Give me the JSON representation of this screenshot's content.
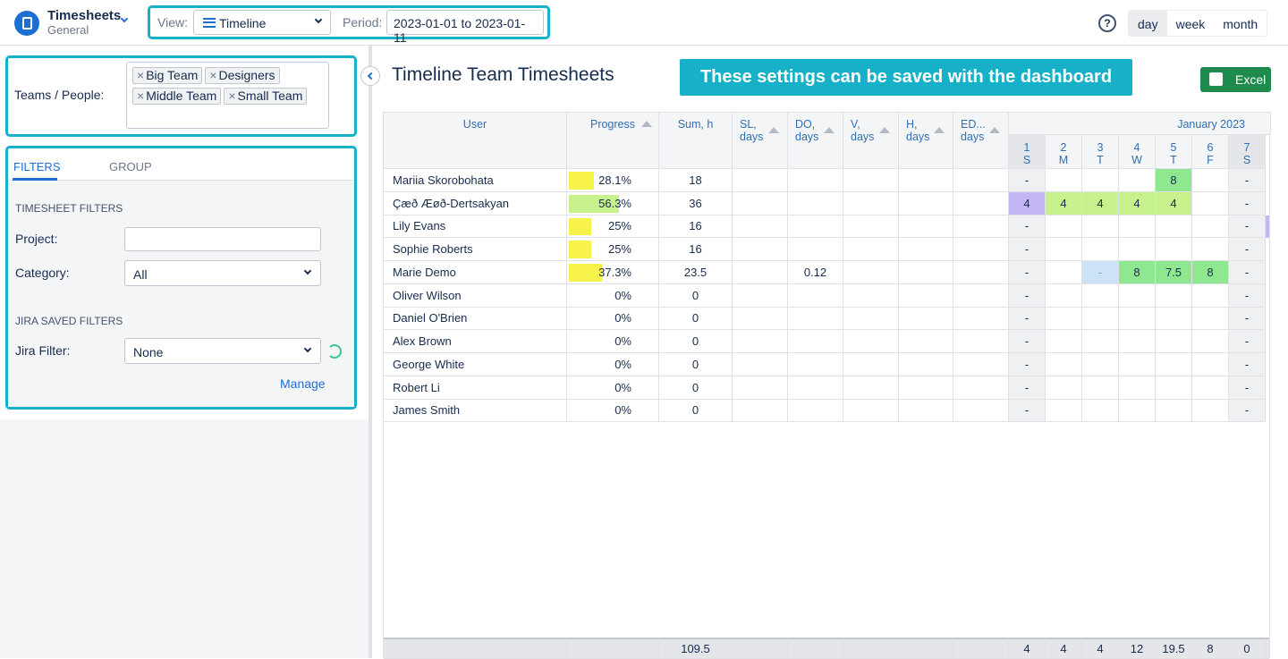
{
  "header": {
    "app_title": "Timesheets",
    "app_subtitle": "General",
    "view_label": "View:",
    "view_value": "Timeline",
    "period_label": "Period:",
    "period_value": "2023-01-01 to 2023-01-11",
    "help": "?",
    "modes": [
      "day",
      "week",
      "month"
    ]
  },
  "sidebar": {
    "teams_label": "Teams / People:",
    "teams": [
      "Big Team",
      "Designers",
      "Middle Team",
      "Small Team"
    ],
    "tabs": [
      "FILTERS",
      "GROUP"
    ],
    "timesheet_filters": "TIMESHEET FILTERS",
    "project_label": "Project:",
    "category_label": "Category:",
    "category_value": "All",
    "jira_heading": "JIRA SAVED FILTERS",
    "jira_label": "Jira Filter:",
    "jira_value": "None",
    "manage": "Manage"
  },
  "main": {
    "title": "Timeline Team Timesheets",
    "banner": "These settings can be saved with the dashboard",
    "excel": "Excel"
  },
  "table": {
    "columns": [
      "User",
      "Progress",
      "Sum, h",
      "SL, days",
      "DO, days",
      "V, days",
      "H, days",
      "ED... days"
    ],
    "month": "January 2023",
    "days": [
      {
        "num": "1",
        "dow": "S",
        "weekend": true
      },
      {
        "num": "2",
        "dow": "M",
        "weekend": false
      },
      {
        "num": "3",
        "dow": "T",
        "weekend": false
      },
      {
        "num": "4",
        "dow": "W",
        "weekend": false
      },
      {
        "num": "5",
        "dow": "T",
        "weekend": false
      },
      {
        "num": "6",
        "dow": "F",
        "weekend": false
      },
      {
        "num": "7",
        "dow": "S",
        "weekend": true
      }
    ],
    "rows": [
      {
        "user": "Mariia Skorobohata",
        "progress": 28.1,
        "progress_label": "28.1%",
        "progress_color": "#f7f24a",
        "sum": 18,
        "leave": [
          null,
          null,
          null,
          null,
          null
        ],
        "day_values": [
          "-",
          null,
          null,
          null,
          "8",
          null,
          "-"
        ],
        "day_colors": [
          null,
          null,
          null,
          null,
          "#8fe88f",
          null,
          null
        ]
      },
      {
        "user": "Çæð Æøð-Dertsakyan",
        "progress": 56.3,
        "progress_label": "56.3%",
        "progress_color": "#c8f08c",
        "sum": 36,
        "leave": [
          null,
          null,
          null,
          null,
          null
        ],
        "day_values": [
          "4",
          "4",
          "4",
          "4",
          "4",
          null,
          "-"
        ],
        "day_colors": [
          "#c4b5f4",
          "#c8f08c",
          "#c8f08c",
          "#c8f08c",
          "#c8f08c",
          null,
          null
        ]
      },
      {
        "user": "Lily Evans",
        "progress": 25,
        "progress_label": "25%",
        "progress_color": "#f7f24a",
        "sum": 16,
        "leave": [
          null,
          null,
          null,
          null,
          null
        ],
        "day_values": [
          "-",
          null,
          null,
          null,
          null,
          null,
          "-"
        ],
        "day_colors": [
          null,
          null,
          null,
          null,
          null,
          null,
          null
        ]
      },
      {
        "user": "Sophie Roberts",
        "progress": 25,
        "progress_label": "25%",
        "progress_color": "#f7f24a",
        "sum": 16,
        "leave": [
          null,
          null,
          null,
          null,
          null
        ],
        "day_values": [
          "-",
          null,
          null,
          null,
          null,
          null,
          "-"
        ],
        "day_colors": [
          null,
          null,
          null,
          null,
          null,
          null,
          null
        ]
      },
      {
        "user": "Marie Demo",
        "progress": 37.3,
        "progress_label": "37.3%",
        "progress_color": "#f7f24a",
        "sum": 23.5,
        "leave": [
          null,
          0.12,
          null,
          null,
          null
        ],
        "day_values": [
          "-",
          null,
          "-",
          "8",
          "7.5",
          "8",
          "-"
        ],
        "day_colors": [
          null,
          null,
          "#cce3f7",
          "#8fe88f",
          "#8fe88f",
          "#8fe88f",
          null
        ]
      },
      {
        "user": "Oliver Wilson",
        "progress": 0,
        "progress_label": "0%",
        "progress_color": "#f7f24a",
        "sum": 0,
        "leave": [
          null,
          null,
          null,
          null,
          null
        ],
        "day_values": [
          "-",
          null,
          null,
          null,
          null,
          null,
          "-"
        ],
        "day_colors": [
          null,
          null,
          null,
          null,
          null,
          null,
          null
        ]
      },
      {
        "user": "Daniel O'Brien",
        "progress": 0,
        "progress_label": "0%",
        "progress_color": "#f7f24a",
        "sum": 0,
        "leave": [
          null,
          null,
          null,
          null,
          null
        ],
        "day_values": [
          "-",
          null,
          null,
          null,
          null,
          null,
          "-"
        ],
        "day_colors": [
          null,
          null,
          null,
          null,
          null,
          null,
          null
        ]
      },
      {
        "user": "Alex Brown",
        "progress": 0,
        "progress_label": "0%",
        "progress_color": "#f7f24a",
        "sum": 0,
        "leave": [
          null,
          null,
          null,
          null,
          null
        ],
        "day_values": [
          "-",
          null,
          null,
          null,
          null,
          null,
          "-"
        ],
        "day_colors": [
          null,
          null,
          null,
          null,
          null,
          null,
          null
        ]
      },
      {
        "user": "George White",
        "progress": 0,
        "progress_label": "0%",
        "progress_color": "#f7f24a",
        "sum": 0,
        "leave": [
          null,
          null,
          null,
          null,
          null
        ],
        "day_values": [
          "-",
          null,
          null,
          null,
          null,
          null,
          "-"
        ],
        "day_colors": [
          null,
          null,
          null,
          null,
          null,
          null,
          null
        ]
      },
      {
        "user": "Robert Li",
        "progress": 0,
        "progress_label": "0%",
        "progress_color": "#f7f24a",
        "sum": 0,
        "leave": [
          null,
          null,
          null,
          null,
          null
        ],
        "day_values": [
          "-",
          null,
          null,
          null,
          null,
          null,
          "-"
        ],
        "day_colors": [
          null,
          null,
          null,
          null,
          null,
          null,
          null
        ]
      },
      {
        "user": "James Smith",
        "progress": 0,
        "progress_label": "0%",
        "progress_color": "#f7f24a",
        "sum": 0,
        "leave": [
          null,
          null,
          null,
          null,
          null
        ],
        "day_values": [
          "-",
          null,
          null,
          null,
          null,
          null,
          "-"
        ],
        "day_colors": [
          null,
          null,
          null,
          null,
          null,
          null,
          null
        ]
      }
    ],
    "totals": {
      "sum": 109.5,
      "days": [
        4,
        4,
        4,
        12,
        19.5,
        8,
        0
      ]
    }
  }
}
